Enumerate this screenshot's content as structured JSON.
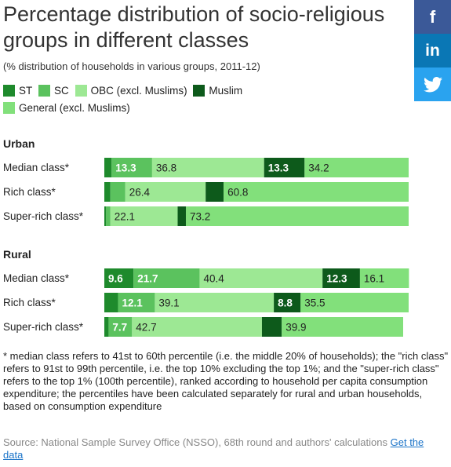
{
  "title": "Percentage distribution of socio-religious groups in different classes",
  "subtitle": "(% distribution of households in various groups, 2011-12)",
  "social": {
    "facebook": "f",
    "linkedin": "in",
    "twitter": "twitter"
  },
  "legend": [
    {
      "label": "ST",
      "color": "#1e8a2c"
    },
    {
      "label": "SC",
      "color": "#5bc25e"
    },
    {
      "label": "OBC (excl. Muslims)",
      "color": "#9de894"
    },
    {
      "label": "Muslim",
      "color": "#0d5a1b"
    },
    {
      "label": "General (excl. Muslims)",
      "color": "#82e07b"
    }
  ],
  "footnote": "* median class refers to 41st to 60th percentile (i.e. the middle 20% of households); the \"rich class\" refers to 91st to 99th percentile, i.e. the top 10% excluding the top 1%; and the \"super-rich class\" refers to the top 1% (100th percentile), ranked according to household per capita consumption expenditure; the percentiles have been calculated separately for rural and urban households, based on consumption expenditure",
  "source": "Source: National Sample Survey Office (NSSO), 68th round and authors' calculations",
  "source_link": "Get the data",
  "chart_data": {
    "type": "bar",
    "stacked": true,
    "orientation": "horizontal",
    "series_names": [
      "ST",
      "SC",
      "OBC (excl. Muslims)",
      "Muslim",
      "General (excl. Muslims)"
    ],
    "groups": [
      {
        "name": "Urban",
        "rows": [
          {
            "label": "Median class*",
            "values": [
              2.4,
              13.3,
              36.8,
              13.3,
              34.2
            ],
            "labels": [
              "",
              "13.3",
              "36.8",
              "13.3",
              "34.2"
            ]
          },
          {
            "label": "Rich class*",
            "values": [
              2.0,
              4.9,
              26.4,
              5.9,
              60.8
            ],
            "labels": [
              "",
              "",
              "26.4",
              "",
              "60.8"
            ]
          },
          {
            "label": "Super-rich class*",
            "values": [
              0.6,
              1.4,
              22.1,
              2.7,
              73.2
            ],
            "labels": [
              "",
              "",
              "22.1",
              "",
              "73.2"
            ]
          }
        ]
      },
      {
        "name": "Rural",
        "rows": [
          {
            "label": "Median class*",
            "values": [
              9.6,
              21.7,
              40.4,
              12.3,
              16.1
            ],
            "labels": [
              "9.6",
              "21.7",
              "40.4",
              "12.3",
              "16.1"
            ]
          },
          {
            "label": "Rich class*",
            "values": [
              4.5,
              12.1,
              39.1,
              8.8,
              35.5
            ],
            "labels": [
              "",
              "12.1",
              "39.1",
              "8.8",
              "35.5"
            ]
          },
          {
            "label": "Super-rich class*",
            "values": [
              1.4,
              7.7,
              42.7,
              6.5,
              39.9
            ],
            "labels": [
              "",
              "7.7",
              "42.7",
              "",
              "39.9"
            ]
          }
        ]
      }
    ],
    "xlim": [
      0,
      100
    ]
  }
}
